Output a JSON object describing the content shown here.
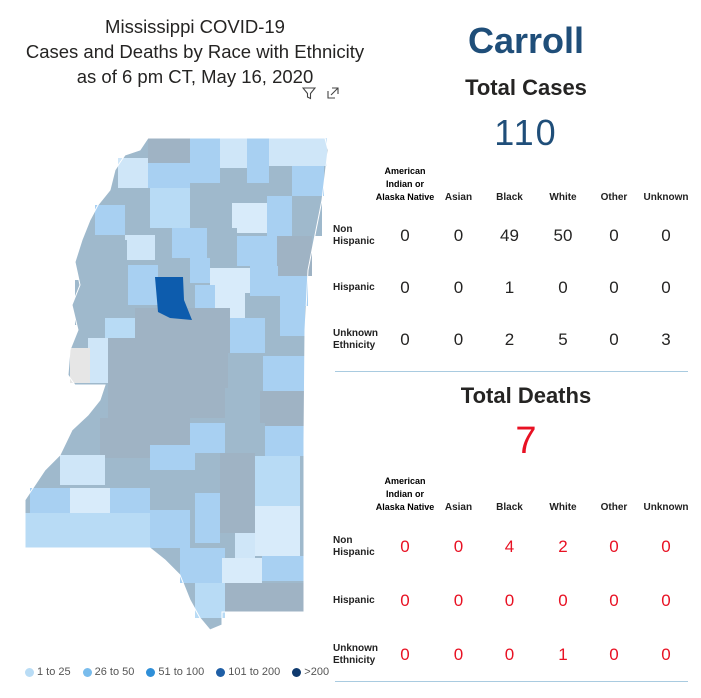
{
  "map_title": {
    "line1": "Mississippi COVID-19",
    "line2": "Cases and Deaths by Race with Ethnicity",
    "line3": "as of 6 pm CT, May 16, 2020"
  },
  "icons": [
    "filter-icon",
    "expand-icon"
  ],
  "legend": [
    {
      "label": "1 to 25",
      "color": "#b9dcf5"
    },
    {
      "label": "26 to 50",
      "color": "#79bcec"
    },
    {
      "label": "51 to 100",
      "color": "#2f8fd8"
    },
    {
      "label": "101 to 200",
      "color": "#1f5fa6"
    },
    {
      "label": ">200",
      "color": "#0f3a6e"
    }
  ],
  "selected_county_color": "#0d5cad",
  "county": "Carroll",
  "total_cases_label": "Total Cases",
  "total_cases": "110",
  "total_deaths_label": "Total Deaths",
  "total_deaths": "7",
  "race_columns": [
    "American Indian or Alaska Native",
    "Asian",
    "Black",
    "White",
    "Other",
    "Unknown"
  ],
  "cases_rows": [
    {
      "label": "Non Hispanic",
      "values": [
        "0",
        "0",
        "49",
        "50",
        "0",
        "0"
      ]
    },
    {
      "label": "Hispanic",
      "values": [
        "0",
        "0",
        "1",
        "0",
        "0",
        "0"
      ]
    },
    {
      "label": "Unknown Ethnicity",
      "values": [
        "0",
        "0",
        "2",
        "5",
        "0",
        "3"
      ]
    }
  ],
  "deaths_rows": [
    {
      "label": "Non Hispanic",
      "values": [
        "0",
        "0",
        "4",
        "2",
        "0",
        "0"
      ]
    },
    {
      "label": "Hispanic",
      "values": [
        "0",
        "0",
        "0",
        "0",
        "0",
        "0"
      ]
    },
    {
      "label": "Unknown Ethnicity",
      "values": [
        "0",
        "0",
        "0",
        "1",
        "0",
        "0"
      ]
    }
  ]
}
